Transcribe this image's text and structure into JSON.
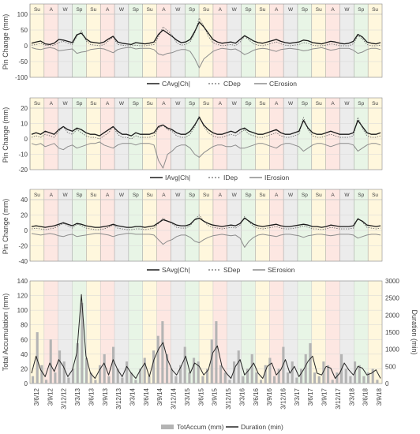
{
  "season_colors": {
    "Su": "#fff7dd",
    "A": "#fde7e2",
    "W": "#ececec",
    "Sp": "#e8f5e6"
  },
  "season_sequence": [
    "Su",
    "A",
    "W",
    "Sp",
    "Su",
    "A",
    "W",
    "Sp",
    "Su",
    "A",
    "W",
    "Sp",
    "Su",
    "A",
    "W",
    "Sp",
    "Su",
    "A",
    "W",
    "Sp",
    "Su",
    "A",
    "W",
    "Sp",
    "Su"
  ],
  "series_colors": {
    "avg": "#1a1a1a",
    "dep": "#6e6e6e",
    "erosion": "#8c8c8c",
    "accum": "#b4b4b4",
    "duration": "#262626"
  },
  "date_ticks": [
    "3/6/12",
    "3/9/12",
    "3/12/12",
    "3/3/13",
    "3/6/13",
    "3/9/13",
    "3/12/13",
    "3/3/14",
    "3/6/14",
    "3/9/14",
    "3/12/14",
    "3/3/15",
    "3/6/15",
    "3/9/15",
    "3/12/15",
    "3/3/16",
    "3/6/16",
    "3/9/16",
    "3/12/16",
    "3/3/17",
    "3/6/17",
    "3/9/17",
    "3/12/17",
    "3/3/18",
    "3/6/18",
    "3/9/18"
  ],
  "chart_data": [
    {
      "type": "line",
      "ylabel": "Pin Change (mm)",
      "ylim": [
        -100,
        100
      ],
      "yticks": [
        100,
        50,
        0,
        -50,
        -100
      ],
      "legend": [
        "CAvg|Ch|",
        "CDep",
        "CErosion"
      ],
      "legend_placement": "bottom",
      "grid": true,
      "series": [
        {
          "name": "CAvg|Ch|",
          "values": [
            8,
            12,
            15,
            6,
            4,
            8,
            20,
            18,
            14,
            10,
            35,
            40,
            22,
            12,
            10,
            8,
            12,
            22,
            30,
            12,
            8,
            6,
            4,
            10,
            8,
            6,
            8,
            12,
            36,
            50,
            40,
            30,
            18,
            10,
            12,
            20,
            45,
            75,
            60,
            40,
            20,
            12,
            8,
            10,
            12,
            8,
            20,
            32,
            24,
            15,
            10,
            8,
            12,
            16,
            20,
            14,
            10,
            8,
            10,
            12,
            18,
            16,
            10,
            8,
            6,
            10,
            14,
            12,
            8,
            6,
            8,
            14,
            36,
            28,
            12,
            8,
            6,
            10
          ]
        },
        {
          "name": "CDep",
          "values": [
            2,
            4,
            8,
            2,
            0,
            2,
            10,
            14,
            8,
            4,
            30,
            48,
            16,
            4,
            2,
            0,
            4,
            16,
            28,
            4,
            2,
            0,
            0,
            2,
            0,
            0,
            2,
            4,
            28,
            60,
            48,
            34,
            10,
            2,
            4,
            12,
            40,
            88,
            62,
            30,
            10,
            4,
            0,
            2,
            4,
            0,
            12,
            30,
            18,
            6,
            2,
            0,
            4,
            8,
            12,
            6,
            2,
            0,
            2,
            4,
            10,
            8,
            2,
            0,
            0,
            2,
            6,
            4,
            0,
            0,
            0,
            6,
            32,
            22,
            4,
            0,
            0,
            2
          ]
        },
        {
          "name": "CErosion",
          "values": [
            -6,
            -10,
            -12,
            -8,
            -6,
            -8,
            -16,
            -14,
            -12,
            -10,
            -24,
            -20,
            -18,
            -12,
            -10,
            -8,
            -10,
            -16,
            -22,
            -12,
            -8,
            -6,
            -6,
            -10,
            -8,
            -8,
            -8,
            -12,
            -26,
            -30,
            -24,
            -22,
            -16,
            -12,
            -12,
            -18,
            -40,
            -70,
            -42,
            -30,
            -18,
            -12,
            -8,
            -10,
            -12,
            -10,
            -18,
            -28,
            -22,
            -14,
            -10,
            -8,
            -10,
            -14,
            -18,
            -12,
            -10,
            -8,
            -10,
            -12,
            -16,
            -14,
            -10,
            -8,
            -6,
            -10,
            -14,
            -12,
            -8,
            -8,
            -8,
            -14,
            -24,
            -20,
            -12,
            -8,
            -8,
            -12
          ]
        }
      ]
    },
    {
      "type": "line",
      "ylabel": "Pin Change (mm)",
      "ylim": [
        -20,
        20
      ],
      "yticks": [
        20,
        10,
        0,
        -10,
        -20
      ],
      "legend": [
        "IAvg|Ch|",
        "IDep",
        "IErosion"
      ],
      "legend_placement": "bottom",
      "grid": true,
      "series": [
        {
          "name": "IAvg|Ch|",
          "values": [
            3,
            4,
            3,
            5,
            4,
            3,
            6,
            8,
            6,
            5,
            7,
            6,
            4,
            3,
            3,
            2,
            4,
            6,
            8,
            5,
            3,
            3,
            2,
            4,
            3,
            3,
            3,
            4,
            8,
            9,
            7,
            6,
            4,
            3,
            3,
            5,
            9,
            14,
            9,
            6,
            4,
            3,
            3,
            4,
            5,
            4,
            6,
            7,
            5,
            4,
            3,
            3,
            4,
            5,
            6,
            4,
            3,
            3,
            4,
            5,
            12,
            7,
            4,
            3,
            3,
            4,
            5,
            4,
            3,
            3,
            3,
            4,
            12,
            8,
            4,
            3,
            3,
            4
          ]
        },
        {
          "name": "IDep",
          "values": [
            1,
            2,
            1,
            3,
            2,
            1,
            5,
            8,
            4,
            3,
            6,
            4,
            2,
            1,
            1,
            0,
            2,
            4,
            8,
            3,
            1,
            1,
            0,
            2,
            1,
            1,
            1,
            2,
            7,
            9,
            6,
            5,
            2,
            1,
            1,
            3,
            8,
            15,
            8,
            4,
            2,
            1,
            1,
            2,
            3,
            2,
            4,
            6,
            3,
            2,
            1,
            1,
            2,
            3,
            4,
            2,
            1,
            1,
            2,
            3,
            14,
            6,
            2,
            1,
            1,
            2,
            3,
            2,
            1,
            1,
            1,
            2,
            14,
            7,
            2,
            1,
            1,
            2
          ]
        },
        {
          "name": "IErosion",
          "values": [
            -3,
            -4,
            -3,
            -5,
            -4,
            -3,
            -6,
            -7,
            -5,
            -4,
            -6,
            -5,
            -4,
            -3,
            -3,
            -2,
            -4,
            -5,
            -6,
            -4,
            -3,
            -3,
            -3,
            -4,
            -3,
            -3,
            -3,
            -4,
            -14,
            -19,
            -10,
            -8,
            -5,
            -4,
            -4,
            -6,
            -10,
            -12,
            -9,
            -7,
            -5,
            -4,
            -4,
            -5,
            -5,
            -4,
            -6,
            -6,
            -5,
            -4,
            -3,
            -3,
            -4,
            -5,
            -6,
            -4,
            -3,
            -3,
            -4,
            -5,
            -8,
            -6,
            -4,
            -3,
            -3,
            -4,
            -5,
            -4,
            -3,
            -3,
            -3,
            -4,
            -8,
            -6,
            -4,
            -3,
            -3,
            -4
          ]
        }
      ]
    },
    {
      "type": "line",
      "ylabel": "Pin Change (mm)",
      "ylim": [
        -40,
        40
      ],
      "yticks": [
        40,
        20,
        0,
        -20,
        -40
      ],
      "legend": [
        "SAvg|Ch|",
        "SDep",
        "SErosion"
      ],
      "legend_placement": "bottom",
      "grid": true,
      "series": [
        {
          "name": "SAvg|Ch|",
          "values": [
            5,
            6,
            5,
            4,
            5,
            6,
            8,
            10,
            8,
            6,
            9,
            8,
            6,
            5,
            4,
            4,
            5,
            6,
            8,
            6,
            5,
            4,
            4,
            5,
            5,
            4,
            5,
            6,
            10,
            14,
            12,
            10,
            7,
            6,
            6,
            8,
            14,
            16,
            12,
            9,
            7,
            6,
            5,
            6,
            7,
            6,
            9,
            16,
            12,
            8,
            6,
            5,
            6,
            7,
            8,
            6,
            5,
            5,
            6,
            7,
            8,
            7,
            5,
            5,
            4,
            5,
            7,
            6,
            5,
            5,
            5,
            6,
            15,
            12,
            7,
            6,
            5,
            6
          ]
        },
        {
          "name": "SDep",
          "values": [
            2,
            3,
            2,
            1,
            2,
            3,
            6,
            9,
            6,
            3,
            8,
            6,
            3,
            2,
            1,
            1,
            2,
            4,
            7,
            3,
            2,
            1,
            1,
            2,
            2,
            1,
            2,
            3,
            9,
            16,
            12,
            9,
            4,
            3,
            3,
            6,
            14,
            20,
            12,
            6,
            4,
            3,
            2,
            3,
            4,
            3,
            7,
            18,
            11,
            5,
            3,
            2,
            3,
            4,
            5,
            3,
            2,
            2,
            3,
            4,
            6,
            4,
            2,
            2,
            1,
            2,
            4,
            3,
            2,
            2,
            2,
            3,
            16,
            11,
            4,
            3,
            2,
            3
          ]
        },
        {
          "name": "SErosion",
          "values": [
            -4,
            -5,
            -6,
            -5,
            -4,
            -5,
            -7,
            -8,
            -6,
            -5,
            -8,
            -7,
            -6,
            -5,
            -4,
            -4,
            -5,
            -6,
            -8,
            -6,
            -5,
            -4,
            -4,
            -5,
            -5,
            -5,
            -5,
            -6,
            -12,
            -18,
            -14,
            -12,
            -8,
            -6,
            -6,
            -9,
            -14,
            -16,
            -12,
            -9,
            -7,
            -6,
            -5,
            -6,
            -7,
            -6,
            -10,
            -22,
            -14,
            -9,
            -6,
            -5,
            -6,
            -7,
            -8,
            -6,
            -5,
            -5,
            -6,
            -7,
            -9,
            -7,
            -6,
            -5,
            -5,
            -6,
            -7,
            -6,
            -5,
            -5,
            -5,
            -6,
            -10,
            -8,
            -6,
            -5,
            -5,
            -6
          ]
        }
      ]
    },
    {
      "type": "bar",
      "ylabel": "Total Accumulation (mm)",
      "y2label": "Duration (min)",
      "ylim": [
        0,
        140
      ],
      "y2lim": [
        0,
        3000
      ],
      "yticks": [
        140,
        120,
        100,
        80,
        60,
        40,
        20,
        0
      ],
      "y2ticks": [
        3000,
        2500,
        2000,
        1500,
        1000,
        500,
        0
      ],
      "legend": [
        "TotAccum (mm)",
        "Duration (min)"
      ],
      "legend_placement": "bottom",
      "grid": true,
      "series": [
        {
          "name": "TotAccum (mm)",
          "values": [
            10,
            70,
            25,
            5,
            60,
            15,
            45,
            30,
            8,
            20,
            55,
            110,
            35,
            15,
            5,
            25,
            40,
            10,
            50,
            20,
            8,
            30,
            15,
            5,
            20,
            35,
            10,
            45,
            65,
            85,
            40,
            20,
            10,
            25,
            50,
            15,
            35,
            30,
            10,
            20,
            60,
            85,
            25,
            15,
            5,
            30,
            45,
            10,
            20,
            40,
            15,
            5,
            25,
            35,
            10,
            20,
            50,
            15,
            30,
            8,
            20,
            40,
            55,
            15,
            10,
            30,
            25,
            5,
            15,
            40,
            20,
            10,
            30,
            25,
            10,
            15,
            20,
            5
          ]
        },
        {
          "name": "Duration (min)",
          "values": [
            300,
            800,
            400,
            200,
            600,
            350,
            700,
            500,
            200,
            400,
            900,
            2600,
            800,
            300,
            150,
            400,
            600,
            250,
            700,
            400,
            200,
            500,
            300,
            150,
            400,
            600,
            200,
            700,
            1000,
            1200,
            700,
            400,
            250,
            500,
            800,
            300,
            600,
            500,
            250,
            400,
            900,
            1100,
            500,
            300,
            150,
            500,
            700,
            250,
            400,
            600,
            300,
            150,
            500,
            600,
            250,
            400,
            700,
            300,
            500,
            200,
            400,
            650,
            800,
            300,
            250,
            500,
            450,
            150,
            300,
            600,
            400,
            250,
            500,
            450,
            250,
            300,
            400,
            150
          ]
        }
      ]
    }
  ]
}
